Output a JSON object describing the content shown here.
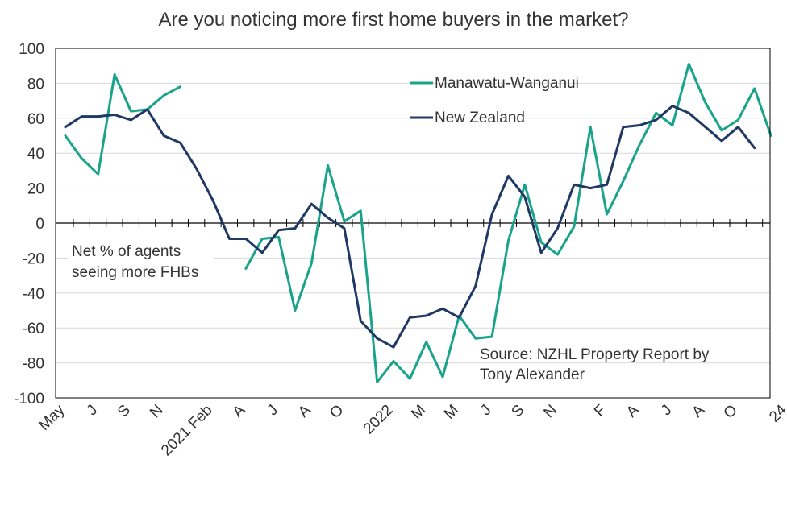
{
  "chart_data": {
    "type": "line",
    "title": "Are you noticing more first home buyers in the market?",
    "ylim": [
      -100,
      100
    ],
    "yticks": [
      100,
      80,
      60,
      40,
      20,
      0,
      -20,
      -40,
      -60,
      -80,
      -100
    ],
    "xticks": [
      {
        "label": "May",
        "i": 0
      },
      {
        "label": "J",
        "i": 2
      },
      {
        "label": "S",
        "i": 4
      },
      {
        "label": "N",
        "i": 6
      },
      {
        "label": "2021 Feb",
        "i": 9
      },
      {
        "label": "A",
        "i": 11
      },
      {
        "label": "J",
        "i": 13
      },
      {
        "label": "A",
        "i": 15
      },
      {
        "label": "O",
        "i": 17
      },
      {
        "label": "2022",
        "i": 20
      },
      {
        "label": "M",
        "i": 22
      },
      {
        "label": "M",
        "i": 24
      },
      {
        "label": "J",
        "i": 26
      },
      {
        "label": "S",
        "i": 28
      },
      {
        "label": "N",
        "i": 30
      },
      {
        "label": "F",
        "i": 33
      },
      {
        "label": "A",
        "i": 35
      },
      {
        "label": "J",
        "i": 37
      },
      {
        "label": "A",
        "i": 39
      },
      {
        "label": "O",
        "i": 41
      },
      {
        "label": "24",
        "i": 44
      }
    ],
    "series": [
      {
        "name": "Manawatu-Wanganui",
        "color": "#19a38a",
        "values": [
          50,
          37,
          28,
          85,
          64,
          65,
          73,
          78,
          null,
          null,
          null,
          -26,
          -9,
          -8,
          -50,
          -23,
          33,
          1,
          7,
          -91,
          -79,
          -89,
          -68,
          -88,
          -53,
          -66,
          -65,
          -10,
          22,
          -11,
          -18,
          -2,
          55,
          5,
          24,
          45,
          63,
          56,
          91,
          69,
          53,
          59,
          77,
          50
        ]
      },
      {
        "name": "New Zealand",
        "color": "#1f3864",
        "values": [
          55,
          61,
          61,
          62,
          59,
          65,
          50,
          46,
          31,
          13,
          -9,
          -9,
          -17,
          -4,
          -3,
          11,
          3,
          -3,
          -56,
          -66,
          -71,
          -54,
          -53,
          -49,
          -54,
          -36,
          5,
          27,
          15,
          -17,
          -3,
          22,
          20,
          22,
          55,
          56,
          59,
          67,
          63,
          55,
          47,
          55,
          43
        ]
      }
    ],
    "annotations": {
      "net_label_line1": "Net % of agents",
      "net_label_line2": "seeing more FHBs",
      "source_line1": "Source: NZHL Property Report by",
      "source_line2": "Tony Alexander"
    }
  }
}
